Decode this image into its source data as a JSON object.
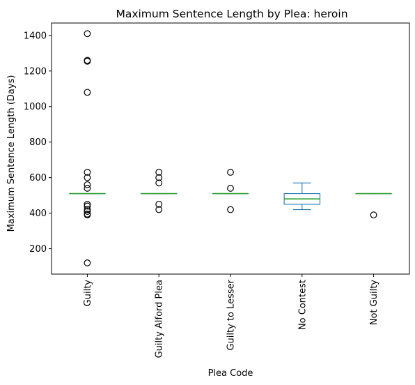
{
  "chart_data": {
    "type": "box",
    "title": "Maximum Sentence Length by Plea: heroin",
    "xlabel": "Plea Code",
    "ylabel": "Maximum Sentence Length (Days)",
    "ylim": [
      57,
      1470
    ],
    "yticks": [
      200,
      400,
      600,
      800,
      1000,
      1200,
      1400
    ],
    "grid": false,
    "colors": {
      "box": "#1f77b4",
      "median": "#2ca02c",
      "outlier_edge": "#000000"
    },
    "categories": [
      "Guilty",
      "Guilty Alford Plea",
      "Guilty to Lesser",
      "No Contest",
      "Not Guilty"
    ],
    "boxes": [
      {
        "category": "Guilty",
        "q1": 510,
        "median": 510,
        "q3": 510,
        "whisker_low": 510,
        "whisker_high": 510,
        "outliers": [
          120,
          390,
          395,
          410,
          420,
          440,
          450,
          540,
          560,
          600,
          630,
          1080,
          1255,
          1260,
          1410
        ]
      },
      {
        "category": "Guilty Alford Plea",
        "q1": 510,
        "median": 510,
        "q3": 510,
        "whisker_low": 510,
        "whisker_high": 510,
        "outliers": [
          420,
          450,
          570,
          600,
          630
        ]
      },
      {
        "category": "Guilty to Lesser",
        "q1": 510,
        "median": 510,
        "q3": 510,
        "whisker_low": 510,
        "whisker_high": 510,
        "outliers": [
          420,
          540,
          630
        ]
      },
      {
        "category": "No Contest",
        "q1": 450,
        "median": 480,
        "q3": 510,
        "whisker_low": 420,
        "whisker_high": 570,
        "outliers": []
      },
      {
        "category": "Not Guilty",
        "q1": 510,
        "median": 510,
        "q3": 510,
        "whisker_low": 510,
        "whisker_high": 510,
        "outliers": [
          390
        ]
      }
    ]
  }
}
